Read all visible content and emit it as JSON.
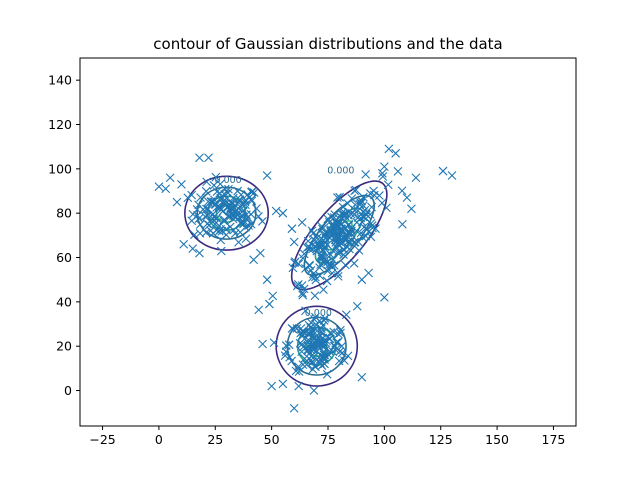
{
  "chart_data": {
    "type": "scatter",
    "title": "contour of Gaussian distributions and the data",
    "xlabel": "",
    "ylabel": "",
    "xlim": [
      -35,
      185
    ],
    "ylim": [
      -16,
      150
    ],
    "xticks": [
      -25,
      0,
      25,
      50,
      75,
      100,
      125,
      150,
      175
    ],
    "yticks": [
      0,
      20,
      40,
      60,
      80,
      100,
      120,
      140
    ],
    "grid": false,
    "marker": "x",
    "marker_color": "#1f77b4",
    "contour_colors": [
      "#3b2a7e",
      "#2c6d8e",
      "#1f9e89",
      "#35b779"
    ],
    "contour_label": "0.000",
    "clusters": [
      {
        "name": "cluster_1",
        "center": [
          30,
          80
        ],
        "spread": [
          7.5,
          6.5
        ],
        "contour_radii": [
          18.5,
          13.0,
          8.5,
          4.5
        ],
        "contour_scale": [
          1.0,
          0.9
        ]
      },
      {
        "name": "cluster_2",
        "center": [
          80,
          70
        ],
        "spread": [
          10,
          10
        ],
        "contour_radii": [
          30,
          22,
          15,
          8
        ],
        "contour_scale": [
          1.0,
          0.38
        ],
        "contour_angle_deg": 50
      },
      {
        "name": "cluster_3",
        "center": [
          70,
          20
        ],
        "spread": [
          6.5,
          7
        ],
        "contour_radii": [
          18,
          13,
          8.5,
          4.5
        ],
        "contour_scale": [
          1.0,
          1.0
        ]
      }
    ],
    "outliers": [
      [
        0,
        92
      ],
      [
        3,
        91
      ],
      [
        5,
        96
      ],
      [
        8,
        85
      ],
      [
        10,
        93
      ],
      [
        18,
        105
      ],
      [
        22,
        105
      ],
      [
        48,
        97
      ],
      [
        52,
        81
      ],
      [
        55,
        80
      ],
      [
        59,
        73
      ],
      [
        60,
        67
      ],
      [
        48,
        50
      ],
      [
        49,
        39
      ],
      [
        46,
        21
      ],
      [
        50,
        2
      ],
      [
        55,
        3
      ],
      [
        60,
        -8
      ],
      [
        62,
        2
      ],
      [
        90,
        6
      ],
      [
        100,
        101
      ],
      [
        102,
        109
      ],
      [
        105,
        107
      ],
      [
        114,
        96
      ],
      [
        126,
        99
      ],
      [
        130,
        97
      ],
      [
        110,
        87
      ],
      [
        112,
        82
      ],
      [
        108,
        75
      ],
      [
        100,
        42
      ],
      [
        90,
        50
      ],
      [
        88,
        38
      ],
      [
        93,
        53
      ],
      [
        65,
        36
      ],
      [
        63,
        28
      ],
      [
        58,
        15
      ],
      [
        11,
        66
      ],
      [
        15,
        64
      ],
      [
        18,
        62
      ],
      [
        42,
        59
      ],
      [
        45,
        62
      ]
    ]
  }
}
